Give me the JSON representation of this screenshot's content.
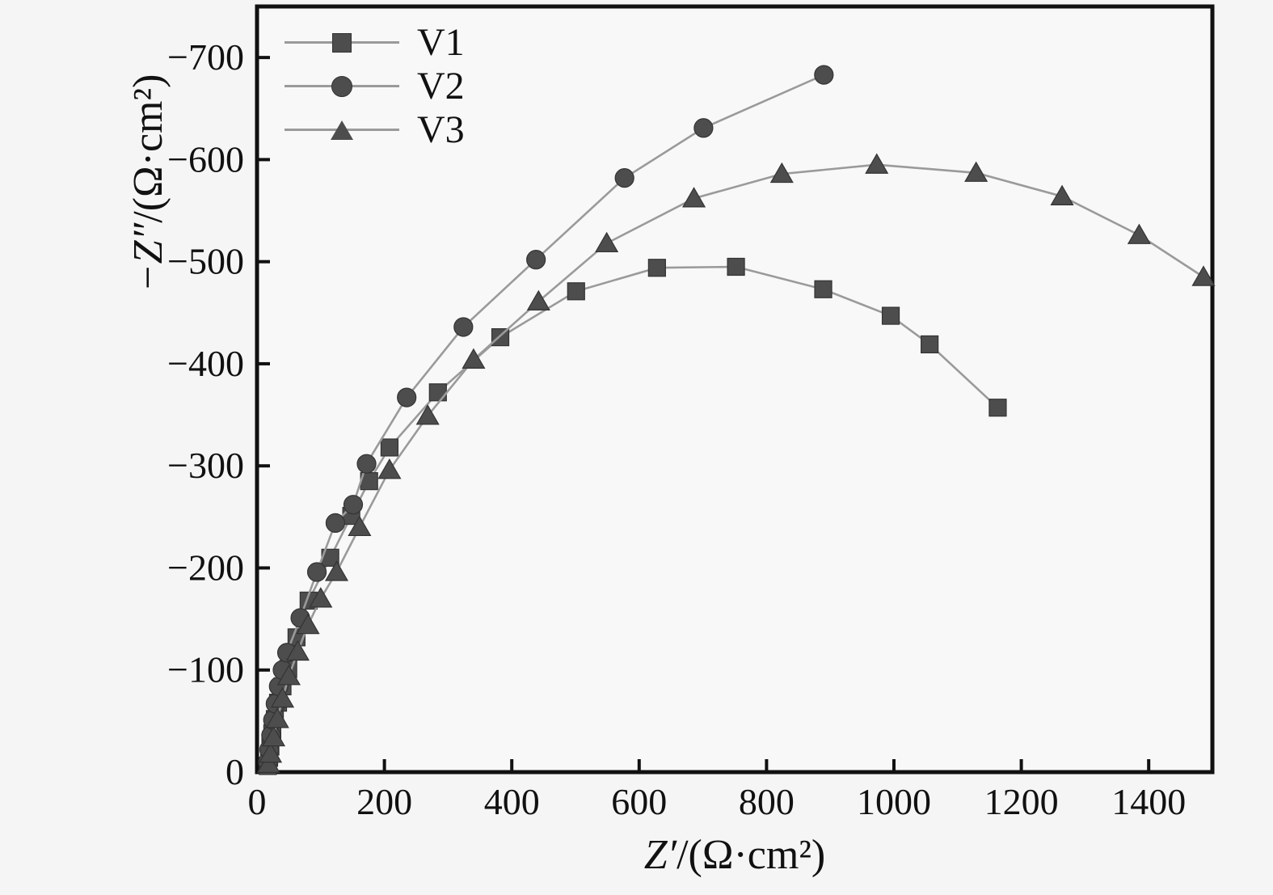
{
  "figure": {
    "background_color": "#f5f5f5",
    "plot_background_color": "#f8f8f8",
    "frame_color": "#111111",
    "text_color": "#111111"
  },
  "chart_data": {
    "type": "line",
    "title": "",
    "xlabel": "Z′/(Ω·cm²)",
    "ylabel": "−Z″/(Ω·cm²)",
    "xlabel_italic": "Z′",
    "xlabel_plain": "/(Ω·cm²)",
    "ylabel_italic": "−Z″",
    "ylabel_plain": "/(Ω·cm²)",
    "xlim": [
      0,
      1500
    ],
    "ylim": [
      0,
      -750
    ],
    "x_ticks": [
      0,
      200,
      400,
      600,
      800,
      1000,
      1200,
      1400
    ],
    "x_tick_labels": [
      "0",
      "200",
      "400",
      "600",
      "800",
      "1000",
      "1200",
      "1400"
    ],
    "y_ticks": [
      0,
      -100,
      -200,
      -300,
      -400,
      -500,
      -600,
      -700
    ],
    "y_tick_labels": [
      "0",
      "−100",
      "−200",
      "−300",
      "−400",
      "−500",
      "−600",
      "−700"
    ],
    "grid": false,
    "legend_position": "upper-left",
    "line_color": "#9a9a9a",
    "marker_color": "#4d4d4d",
    "marker_edge_color": "#333333",
    "series": [
      {
        "name": "V1",
        "marker": "square",
        "points": [
          [
            17,
            -6
          ],
          [
            19,
            -14
          ],
          [
            21,
            -25
          ],
          [
            24,
            -38
          ],
          [
            28,
            -52
          ],
          [
            33,
            -68
          ],
          [
            40,
            -84
          ],
          [
            49,
            -101
          ],
          [
            62,
            -132
          ],
          [
            81,
            -168
          ],
          [
            115,
            -210
          ],
          [
            148,
            -251
          ],
          [
            176,
            -285
          ],
          [
            208,
            -318
          ],
          [
            284,
            -372
          ],
          [
            382,
            -426
          ],
          [
            501,
            -471
          ],
          [
            628,
            -494
          ],
          [
            752,
            -495
          ],
          [
            889,
            -473
          ],
          [
            995,
            -447
          ],
          [
            1056,
            -419
          ],
          [
            1163,
            -357
          ]
        ]
      },
      {
        "name": "V2",
        "marker": "circle",
        "points": [
          [
            17,
            -10
          ],
          [
            19,
            -22
          ],
          [
            22,
            -36
          ],
          [
            25,
            -51
          ],
          [
            29,
            -67
          ],
          [
            34,
            -84
          ],
          [
            40,
            -100
          ],
          [
            47,
            -117
          ],
          [
            68,
            -151
          ],
          [
            94,
            -196
          ],
          [
            123,
            -244
          ],
          [
            151,
            -262
          ],
          [
            172,
            -302
          ],
          [
            235,
            -367
          ],
          [
            324,
            -436
          ],
          [
            438,
            -502
          ],
          [
            577,
            -582
          ],
          [
            701,
            -631
          ],
          [
            890,
            -683
          ]
        ]
      },
      {
        "name": "V3",
        "marker": "triangle",
        "points": [
          [
            18,
            -8
          ],
          [
            21,
            -18
          ],
          [
            26,
            -34
          ],
          [
            32,
            -52
          ],
          [
            40,
            -72
          ],
          [
            50,
            -94
          ],
          [
            64,
            -118
          ],
          [
            80,
            -144
          ],
          [
            100,
            -170
          ],
          [
            125,
            -196
          ],
          [
            161,
            -240
          ],
          [
            208,
            -296
          ],
          [
            268,
            -349
          ],
          [
            340,
            -404
          ],
          [
            442,
            -461
          ],
          [
            549,
            -518
          ],
          [
            686,
            -562
          ],
          [
            824,
            -586
          ],
          [
            973,
            -595
          ],
          [
            1129,
            -587
          ],
          [
            1264,
            -564
          ],
          [
            1385,
            -526
          ],
          [
            1486,
            -485
          ]
        ]
      }
    ]
  }
}
